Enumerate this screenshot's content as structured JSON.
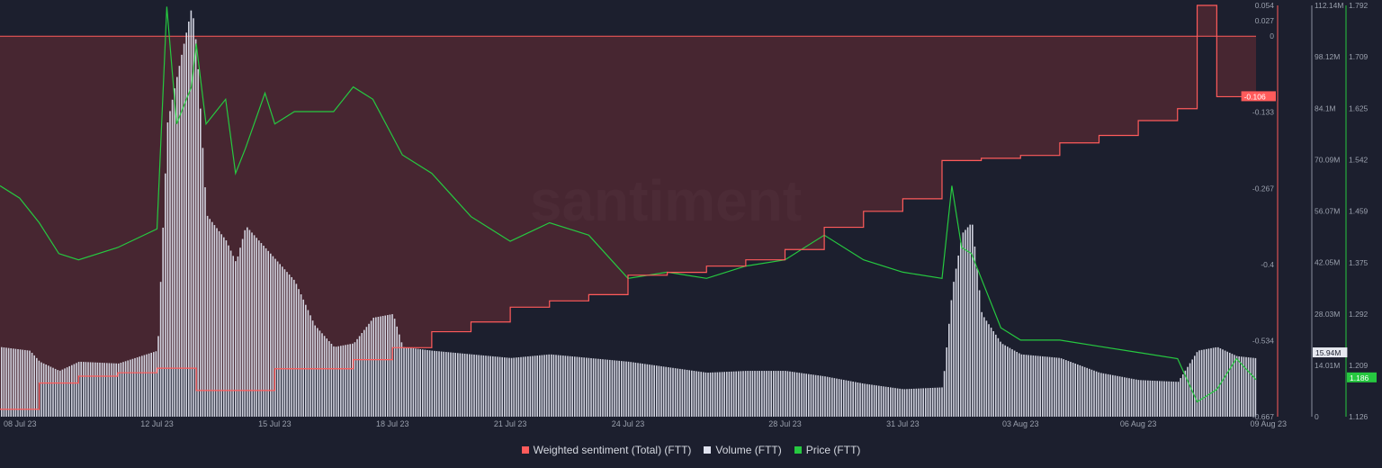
{
  "watermark": "santiment",
  "chart_data": {
    "type": "line",
    "x_tick_labels": [
      "08 Jul 23",
      "12 Jul 23",
      "15 Jul 23",
      "18 Jul 23",
      "21 Jul 23",
      "24 Jul 23",
      "28 Jul 23",
      "31 Jul 23",
      "03 Aug 23",
      "06 Aug 23",
      "09 Aug 23"
    ],
    "x_range": [
      "2023-07-08",
      "2023-08-09"
    ],
    "sentiment_axis": {
      "ticks": [
        "0.054",
        "0.027",
        "0",
        "-0.133",
        "-0.267",
        "-0.4",
        "-0.534",
        "-0.667"
      ],
      "tick_values": [
        0.054,
        0.027,
        0,
        -0.133,
        -0.267,
        -0.4,
        -0.534,
        -0.667
      ],
      "range": [
        -0.667,
        0.054
      ],
      "current_label": "-0.106",
      "current_value": -0.106,
      "color": "#ff5b5b"
    },
    "volume_axis": {
      "ticks": [
        "112.14M",
        "98.12M",
        "84.1M",
        "70.09M",
        "56.07M",
        "42.05M",
        "28.03M",
        "14.01M",
        "0"
      ],
      "tick_values": [
        112.14,
        98.12,
        84.1,
        70.09,
        56.07,
        42.05,
        28.03,
        14.01,
        0
      ],
      "range": [
        0,
        112.14
      ],
      "unit": "M",
      "current_label": "15.94M",
      "current_value": 15.94,
      "color": "#dfe2ee"
    },
    "price_axis": {
      "ticks": [
        "1.792",
        "1.709",
        "1.625",
        "1.542",
        "1.459",
        "1.375",
        "1.292",
        "1.209",
        "1.126"
      ],
      "tick_values": [
        1.792,
        1.709,
        1.625,
        1.542,
        1.459,
        1.375,
        1.292,
        1.209,
        1.126
      ],
      "range": [
        1.126,
        1.792
      ],
      "current_label": "1.186",
      "current_value": 1.186,
      "color": "#26c940"
    },
    "series": [
      {
        "name": "Weighted sentiment (Total) (FTT)",
        "color": "#ff5b5b",
        "step": true,
        "points": [
          [
            "2023-07-08",
            -0.654
          ],
          [
            "2023-07-09",
            -0.608
          ],
          [
            "2023-07-10",
            -0.596
          ],
          [
            "2023-07-11",
            -0.59
          ],
          [
            "2023-07-12",
            -0.582
          ],
          [
            "2023-07-13",
            -0.621
          ],
          [
            "2023-07-15",
            -0.583
          ],
          [
            "2023-07-17",
            -0.567
          ],
          [
            "2023-07-18",
            -0.546
          ],
          [
            "2023-07-19",
            -0.518
          ],
          [
            "2023-07-20",
            -0.501
          ],
          [
            "2023-07-21",
            -0.475
          ],
          [
            "2023-07-22",
            -0.464
          ],
          [
            "2023-07-23",
            -0.453
          ],
          [
            "2023-07-24",
            -0.419
          ],
          [
            "2023-07-25",
            -0.414
          ],
          [
            "2023-07-26",
            -0.403
          ],
          [
            "2023-07-27",
            -0.392
          ],
          [
            "2023-07-28",
            -0.374
          ],
          [
            "2023-07-29",
            -0.335
          ],
          [
            "2023-07-30",
            -0.307
          ],
          [
            "2023-07-31",
            -0.285
          ],
          [
            "2023-08-01",
            -0.218
          ],
          [
            "2023-08-02",
            -0.214
          ],
          [
            "2023-08-03",
            -0.209
          ],
          [
            "2023-08-04",
            -0.187
          ],
          [
            "2023-08-05",
            -0.174
          ],
          [
            "2023-08-06",
            -0.148
          ],
          [
            "2023-08-07",
            -0.127
          ],
          [
            "2023-08-07T12:00",
            0.054
          ],
          [
            "2023-08-08",
            -0.106
          ],
          [
            "2023-08-09",
            -0.106
          ]
        ]
      },
      {
        "name": "Volume (FTT)",
        "color": "#dfe2ee",
        "unit": "M",
        "points": [
          [
            "2023-07-08",
            19
          ],
          [
            "2023-07-08T18:00",
            18
          ],
          [
            "2023-07-09",
            15
          ],
          [
            "2023-07-09T12:00",
            12.5
          ],
          [
            "2023-07-10",
            15
          ],
          [
            "2023-07-11",
            14.5
          ],
          [
            "2023-07-12",
            18
          ],
          [
            "2023-07-12T06:00",
            80
          ],
          [
            "2023-07-12T12:00",
            93
          ],
          [
            "2023-07-12T21:00",
            112
          ],
          [
            "2023-07-13",
            100
          ],
          [
            "2023-07-13T06:00",
            55
          ],
          [
            "2023-07-13T18:00",
            48
          ],
          [
            "2023-07-14",
            42
          ],
          [
            "2023-07-14T06:00",
            52
          ],
          [
            "2023-07-14T18:00",
            46
          ],
          [
            "2023-07-15",
            43
          ],
          [
            "2023-07-15T12:00",
            37
          ],
          [
            "2023-07-16",
            25
          ],
          [
            "2023-07-16T12:00",
            19
          ],
          [
            "2023-07-17",
            20
          ],
          [
            "2023-07-17T12:00",
            27
          ],
          [
            "2023-07-18",
            28
          ],
          [
            "2023-07-18T06:00",
            19
          ],
          [
            "2023-07-19",
            18
          ],
          [
            "2023-07-20",
            17
          ],
          [
            "2023-07-21",
            16
          ],
          [
            "2023-07-22",
            17
          ],
          [
            "2023-07-23",
            16
          ],
          [
            "2023-07-24",
            15
          ],
          [
            "2023-07-25",
            13.5
          ],
          [
            "2023-07-26",
            12
          ],
          [
            "2023-07-27",
            12.5
          ],
          [
            "2023-07-28",
            12.5
          ],
          [
            "2023-07-29",
            11
          ],
          [
            "2023-07-30",
            9
          ],
          [
            "2023-07-31",
            7.5
          ],
          [
            "2023-08-01",
            8
          ],
          [
            "2023-08-01T06:00",
            35
          ],
          [
            "2023-08-01T12:00",
            50
          ],
          [
            "2023-08-01T18:00",
            53
          ],
          [
            "2023-08-02",
            28
          ],
          [
            "2023-08-02T12:00",
            20
          ],
          [
            "2023-08-03",
            17
          ],
          [
            "2023-08-04",
            16
          ],
          [
            "2023-08-05",
            12
          ],
          [
            "2023-08-06",
            10
          ],
          [
            "2023-08-07",
            9.5
          ],
          [
            "2023-08-07T12:00",
            18
          ],
          [
            "2023-08-08",
            19
          ],
          [
            "2023-08-08T12:00",
            16.5
          ],
          [
            "2023-08-09",
            15.94
          ]
        ]
      },
      {
        "name": "Price (FTT)",
        "color": "#26c940",
        "points": [
          [
            "2023-07-08",
            1.5
          ],
          [
            "2023-07-08T12:00",
            1.48
          ],
          [
            "2023-07-09",
            1.44
          ],
          [
            "2023-07-09T12:00",
            1.39
          ],
          [
            "2023-07-10",
            1.38
          ],
          [
            "2023-07-11",
            1.4
          ],
          [
            "2023-07-12",
            1.43
          ],
          [
            "2023-07-12T06:00",
            1.79
          ],
          [
            "2023-07-12T12:00",
            1.6
          ],
          [
            "2023-07-12T21:00",
            1.66
          ],
          [
            "2023-07-13",
            1.73
          ],
          [
            "2023-07-13T06:00",
            1.6
          ],
          [
            "2023-07-13T18:00",
            1.64
          ],
          [
            "2023-07-14",
            1.52
          ],
          [
            "2023-07-14T06:00",
            1.56
          ],
          [
            "2023-07-14T18:00",
            1.65
          ],
          [
            "2023-07-15",
            1.6
          ],
          [
            "2023-07-15T12:00",
            1.62
          ],
          [
            "2023-07-16",
            1.62
          ],
          [
            "2023-07-16T12:00",
            1.62
          ],
          [
            "2023-07-17",
            1.66
          ],
          [
            "2023-07-17T12:00",
            1.64
          ],
          [
            "2023-07-18",
            1.58
          ],
          [
            "2023-07-18T06:00",
            1.55
          ],
          [
            "2023-07-19",
            1.52
          ],
          [
            "2023-07-20",
            1.45
          ],
          [
            "2023-07-21",
            1.41
          ],
          [
            "2023-07-22",
            1.44
          ],
          [
            "2023-07-23",
            1.42
          ],
          [
            "2023-07-24",
            1.35
          ],
          [
            "2023-07-25",
            1.36
          ],
          [
            "2023-07-26",
            1.35
          ],
          [
            "2023-07-27",
            1.37
          ],
          [
            "2023-07-28",
            1.38
          ],
          [
            "2023-07-29",
            1.42
          ],
          [
            "2023-07-30",
            1.38
          ],
          [
            "2023-07-31",
            1.36
          ],
          [
            "2023-08-01",
            1.35
          ],
          [
            "2023-08-01T06:00",
            1.5
          ],
          [
            "2023-08-01T12:00",
            1.4
          ],
          [
            "2023-08-01T18:00",
            1.39
          ],
          [
            "2023-08-02",
            1.35
          ],
          [
            "2023-08-02T12:00",
            1.27
          ],
          [
            "2023-08-03",
            1.25
          ],
          [
            "2023-08-04",
            1.25
          ],
          [
            "2023-08-05",
            1.24
          ],
          [
            "2023-08-06",
            1.23
          ],
          [
            "2023-08-07",
            1.22
          ],
          [
            "2023-08-07T12:00",
            1.15
          ],
          [
            "2023-08-08",
            1.17
          ],
          [
            "2023-08-08T12:00",
            1.22
          ],
          [
            "2023-08-09",
            1.186
          ]
        ]
      }
    ],
    "legend_placement": "bottom-center",
    "grid": false
  },
  "legend": [
    {
      "label": "Weighted sentiment (Total) (FTT)",
      "color": "#ff5b5b"
    },
    {
      "label": "Volume (FTT)",
      "color": "#dfe2ee"
    },
    {
      "label": "Price (FTT)",
      "color": "#26c940"
    }
  ]
}
